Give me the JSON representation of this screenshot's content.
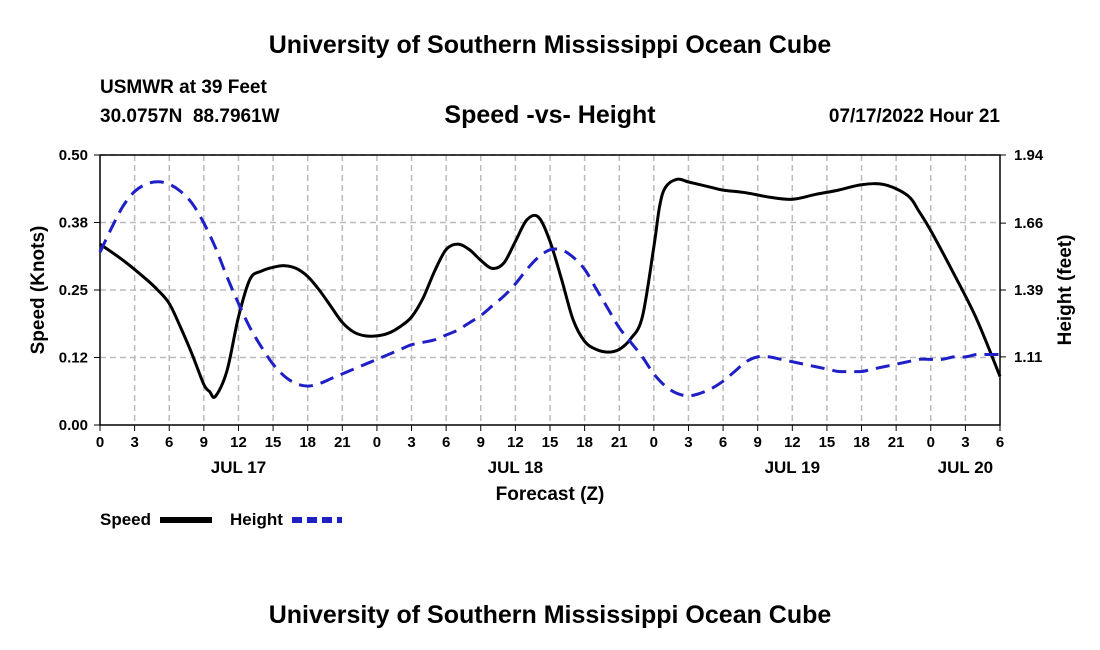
{
  "header": {
    "title": "University of Southern Mississippi Ocean Cube",
    "station": "USMWR at 39 Feet",
    "coords": "30.0757N  88.7961W",
    "subtitle": "Speed -vs- Height",
    "datetime": "07/17/2022 Hour 21"
  },
  "footer": {
    "title": "University of Southern Mississippi Ocean Cube"
  },
  "colors": {
    "speed": "#000000",
    "height": "#1f1fc8",
    "grid": "#bbbbbb"
  },
  "chart_data": {
    "type": "line",
    "title": "Speed -vs- Height",
    "xlabel": "Forecast (Z)",
    "ylabel": "Speed (Knots)",
    "y2label": "Height (feet)",
    "x_ticks": [
      "0",
      "3",
      "6",
      "9",
      "12",
      "15",
      "18",
      "21",
      "0",
      "3",
      "6",
      "9",
      "12",
      "15",
      "18",
      "21",
      "0",
      "3",
      "6",
      "9",
      "12",
      "15",
      "18",
      "21",
      "0",
      "3",
      "6"
    ],
    "date_labels": [
      {
        "label": "JUL 17",
        "tick_index": 4
      },
      {
        "label": "JUL 18",
        "tick_index": 12
      },
      {
        "label": "JUL 19",
        "tick_index": 20
      },
      {
        "label": "JUL 20",
        "tick_index": 25
      }
    ],
    "y_ticks": [
      "0.00",
      "0.12",
      "0.25",
      "0.38",
      "0.50"
    ],
    "y_tick_values": [
      0,
      0.125,
      0.25,
      0.375,
      0.5
    ],
    "y2_ticks": [
      "1.11",
      "1.39",
      "1.66",
      "1.94"
    ],
    "y2_tick_values": [
      1.11,
      1.385,
      1.66,
      1.94
    ],
    "ylim": [
      0,
      0.5
    ],
    "y2lim": [
      0.83,
      1.94
    ],
    "x_unit": "hours since JUL 17 00Z",
    "xlim": [
      0,
      78
    ],
    "legend": [
      {
        "name": "Speed",
        "style": "solid"
      },
      {
        "name": "Height",
        "style": "dashed"
      }
    ],
    "series": [
      {
        "name": "Speed",
        "axis": "left",
        "style": "solid",
        "x": [
          0,
          2,
          4,
          5,
          6,
          7,
          8,
          9,
          9.5,
          10,
          11,
          12,
          13,
          14,
          15,
          16,
          17,
          18,
          19,
          20,
          21,
          22,
          23,
          24,
          25,
          26,
          27,
          28,
          29,
          30,
          31,
          32,
          33,
          34,
          35,
          36,
          37,
          38,
          39,
          40,
          41,
          42,
          43,
          44,
          45,
          46,
          47,
          48,
          48.5,
          49,
          50,
          51,
          52,
          53,
          54,
          56,
          58,
          60,
          62,
          64,
          66,
          68,
          70,
          71,
          72,
          74,
          76,
          78
        ],
        "values": [
          0.335,
          0.305,
          0.27,
          0.25,
          0.225,
          0.18,
          0.13,
          0.075,
          0.062,
          0.053,
          0.1,
          0.2,
          0.27,
          0.285,
          0.292,
          0.295,
          0.29,
          0.275,
          0.25,
          0.22,
          0.19,
          0.172,
          0.165,
          0.165,
          0.17,
          0.182,
          0.2,
          0.235,
          0.285,
          0.325,
          0.335,
          0.325,
          0.305,
          0.29,
          0.3,
          0.34,
          0.38,
          0.385,
          0.34,
          0.27,
          0.195,
          0.155,
          0.14,
          0.135,
          0.14,
          0.16,
          0.2,
          0.33,
          0.405,
          0.44,
          0.455,
          0.45,
          0.445,
          0.44,
          0.435,
          0.43,
          0.422,
          0.418,
          0.427,
          0.435,
          0.445,
          0.445,
          0.425,
          0.395,
          0.36,
          0.28,
          0.195,
          0.09
        ]
      },
      {
        "name": "Height",
        "axis": "right",
        "style": "dashed",
        "x": [
          0,
          1,
          2,
          3,
          4,
          5,
          6,
          7,
          8,
          9,
          10,
          11,
          12,
          13,
          14,
          15,
          16,
          17,
          18,
          19,
          20,
          21,
          22,
          23,
          24,
          25,
          26,
          27,
          28,
          29,
          30,
          31,
          32,
          33,
          34,
          35,
          36,
          37,
          38,
          39,
          40,
          41,
          42,
          43,
          44,
          45,
          46,
          47,
          48,
          49,
          50,
          51,
          52,
          53,
          54,
          55,
          56,
          57,
          58,
          59,
          60,
          61,
          62,
          63,
          64,
          65,
          66,
          67,
          68,
          69,
          70,
          71,
          72,
          73,
          74,
          75,
          76,
          77,
          78
        ],
        "values": [
          1.54,
          1.64,
          1.73,
          1.79,
          1.82,
          1.83,
          1.82,
          1.79,
          1.74,
          1.66,
          1.56,
          1.44,
          1.33,
          1.23,
          1.15,
          1.08,
          1.03,
          1.0,
          0.99,
          1.0,
          1.02,
          1.04,
          1.06,
          1.08,
          1.1,
          1.12,
          1.14,
          1.16,
          1.17,
          1.18,
          1.2,
          1.22,
          1.25,
          1.28,
          1.32,
          1.36,
          1.41,
          1.47,
          1.52,
          1.55,
          1.55,
          1.52,
          1.47,
          1.39,
          1.31,
          1.23,
          1.17,
          1.11,
          1.04,
          0.99,
          0.96,
          0.95,
          0.96,
          0.98,
          1.01,
          1.05,
          1.09,
          1.11,
          1.11,
          1.1,
          1.09,
          1.08,
          1.07,
          1.06,
          1.05,
          1.05,
          1.05,
          1.06,
          1.07,
          1.08,
          1.09,
          1.1,
          1.1,
          1.1,
          1.11,
          1.11,
          1.12,
          1.12,
          1.12
        ]
      }
    ]
  }
}
